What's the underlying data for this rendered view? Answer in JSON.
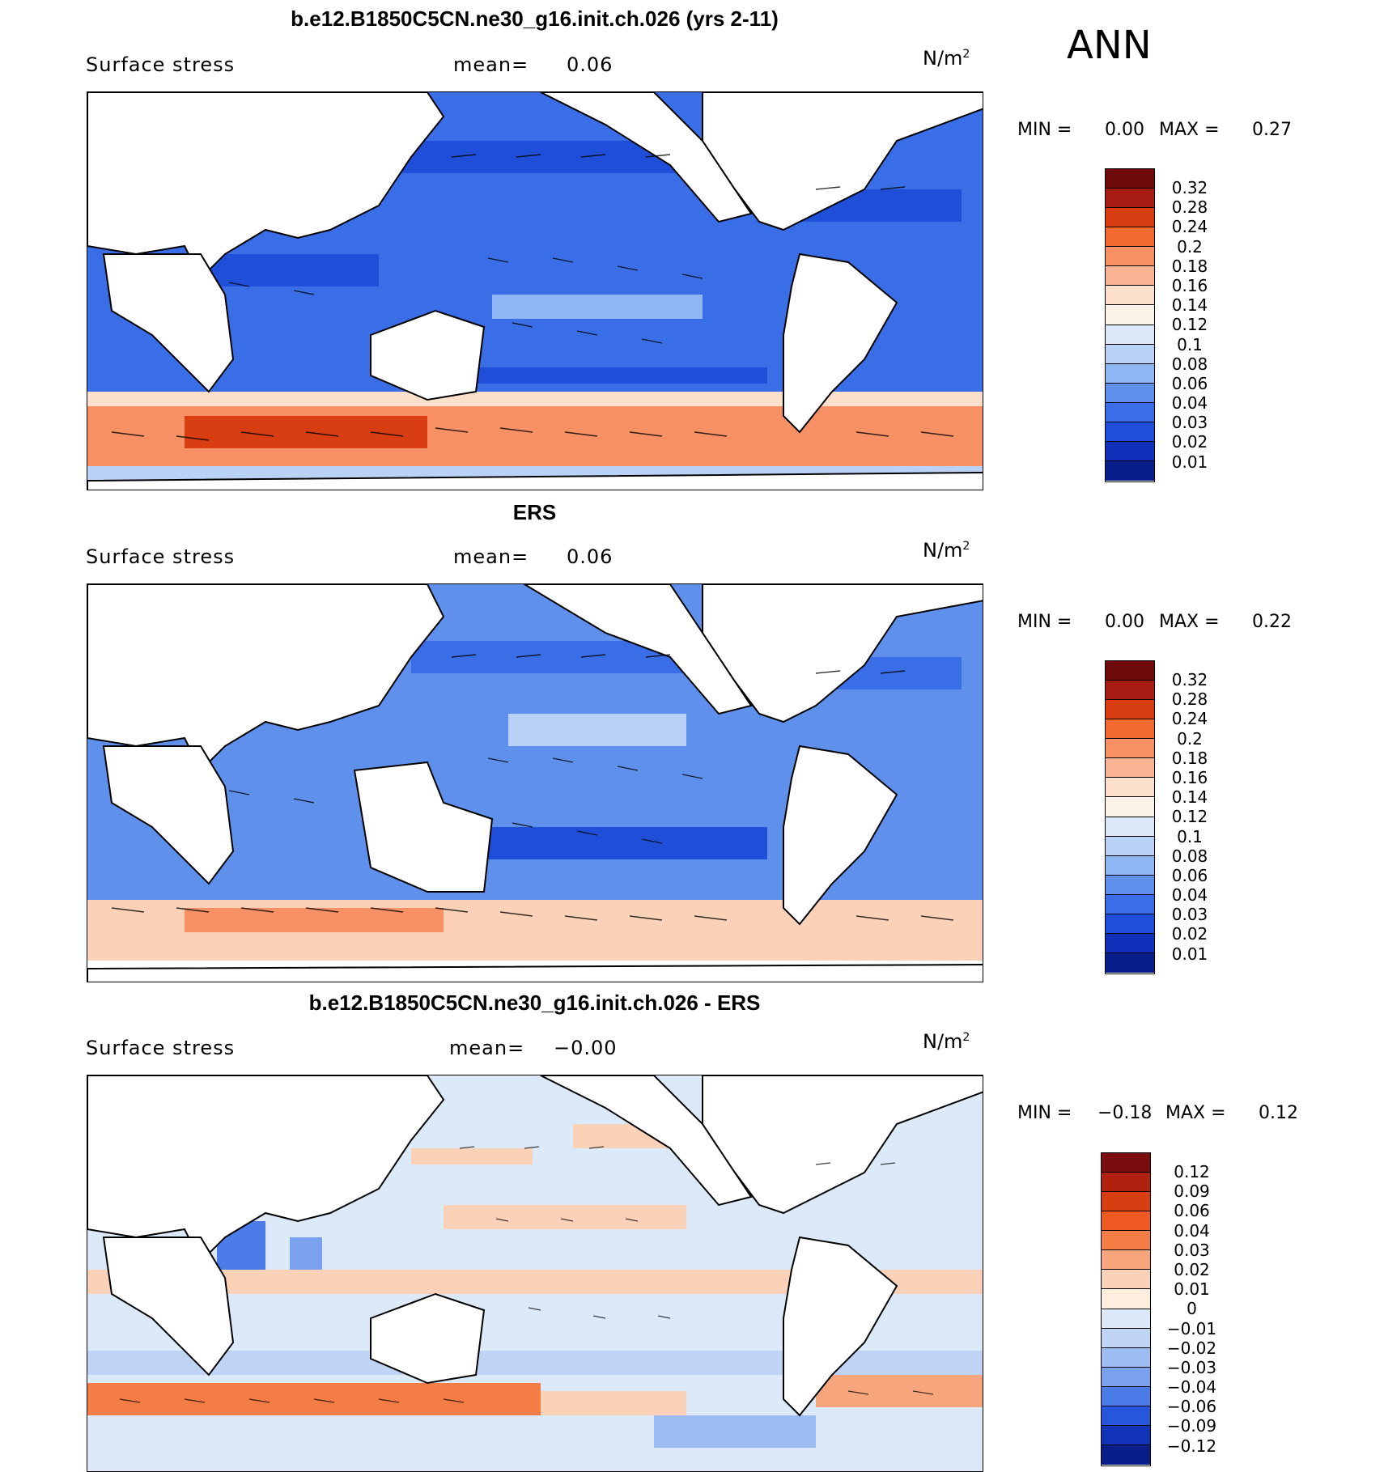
{
  "season": "ANN",
  "panels": [
    {
      "title": "b.e12.B1850C5CN.ne30_g16.init.ch.026 (yrs 2-11)",
      "variable": "Surface stress",
      "mean_label": "mean=",
      "mean_value": "0.06",
      "units_base": "N/m",
      "units_exp": "2",
      "min_label": "MIN =",
      "min_value": "0.00",
      "max_label": "MAX =",
      "max_value": "0.27",
      "colorbar_labels": [
        "0.32",
        "0.28",
        "0.24",
        "0.2",
        "0.18",
        "0.16",
        "0.14",
        "0.12",
        "0.1",
        "0.08",
        "0.06",
        "0.04",
        "0.03",
        "0.02",
        "0.01"
      ]
    },
    {
      "title": "ERS",
      "variable": "Surface stress",
      "mean_label": "mean=",
      "mean_value": "0.06",
      "units_base": "N/m",
      "units_exp": "2",
      "min_label": "MIN =",
      "min_value": "0.00",
      "max_label": "MAX =",
      "max_value": "0.22",
      "colorbar_labels": [
        "0.32",
        "0.28",
        "0.24",
        "0.2",
        "0.18",
        "0.16",
        "0.14",
        "0.12",
        "0.1",
        "0.08",
        "0.06",
        "0.04",
        "0.03",
        "0.02",
        "0.01"
      ]
    },
    {
      "title": "b.e12.B1850C5CN.ne30_g16.init.ch.026 - ERS",
      "variable": "Surface stress",
      "mean_label": "mean=",
      "mean_value": "−0.00",
      "units_base": "N/m",
      "units_exp": "2",
      "min_label": "MIN =",
      "min_value": "−0.18",
      "max_label": "MAX =",
      "max_value": "0.12",
      "colorbar_labels": [
        "0.12",
        "0.09",
        "0.06",
        "0.04",
        "0.03",
        "0.02",
        "0.01",
        "0",
        "−0.01",
        "−0.02",
        "−0.03",
        "−0.04",
        "−0.06",
        "−0.09",
        "−0.12"
      ]
    }
  ],
  "colors": {
    "seq_scale": [
      "#6e0a0a",
      "#a61c12",
      "#d93d12",
      "#f26a2e",
      "#f79065",
      "#f9b593",
      "#fde0cb",
      "#fdf2e8",
      "#dbe9fa",
      "#b9d2f6",
      "#8db6f2",
      "#5f90ec",
      "#3a6ee6",
      "#1f4fd9",
      "#0f30b8",
      "#0a1e8a"
    ],
    "diff_scale": [
      "#7a0d0d",
      "#b0210f",
      "#d93d12",
      "#f05a22",
      "#f47c45",
      "#f7a57c",
      "#fbd2b8",
      "#fdeede",
      "#dce9f8",
      "#bfd4f5",
      "#9dbcf2",
      "#7aa1ee",
      "#4b7ce8",
      "#2656dc",
      "#1234b8",
      "#0a1e8a"
    ],
    "land": "#ffffff"
  }
}
